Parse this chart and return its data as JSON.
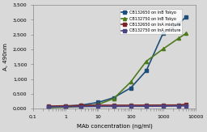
{
  "xlabel": "MAb concentration (ng/ml)",
  "ylabel": "A, 490nm",
  "ylim": [
    0,
    3500
  ],
  "yticks": [
    0,
    500,
    1000,
    1500,
    2000,
    2500,
    3000,
    3500
  ],
  "ytick_labels": [
    "0,000",
    "0,500",
    "1,000",
    "1,500",
    "2,000",
    "2,500",
    "3,000",
    "3,500"
  ],
  "bg_color": "#d9d9d9",
  "series": [
    {
      "label": "CB132650 on InB Tokyo",
      "color": "#1f4e79",
      "marker": "s",
      "x": [
        0.3,
        1,
        3,
        10,
        30,
        100,
        300,
        1000,
        3000,
        5000
      ],
      "y": [
        55,
        80,
        120,
        210,
        370,
        700,
        1280,
        2560,
        2870,
        3100
      ]
    },
    {
      "label": "CB132750 on InB Tokyo",
      "color": "#4e7a1f",
      "marker": "^",
      "x": [
        0.3,
        1,
        3,
        10,
        30,
        100,
        300,
        1000,
        3000,
        5000
      ],
      "y": [
        30,
        50,
        75,
        140,
        340,
        900,
        1600,
        2020,
        2380,
        2540
      ]
    },
    {
      "label": "CB132650 on InA mixture",
      "color": "#7b2427",
      "marker": "s",
      "x": [
        0.3,
        1,
        3,
        10,
        30,
        100,
        300,
        1000,
        3000,
        5000
      ],
      "y": [
        85,
        95,
        105,
        115,
        115,
        115,
        118,
        120,
        122,
        150
      ]
    },
    {
      "label": "CB132750 on InA mixture",
      "color": "#4a4480",
      "marker": "s",
      "x": [
        0.3,
        1,
        3,
        10,
        30,
        100,
        300,
        1000,
        3000,
        5000
      ],
      "y": [
        60,
        65,
        70,
        75,
        75,
        78,
        80,
        82,
        88,
        95
      ]
    }
  ]
}
